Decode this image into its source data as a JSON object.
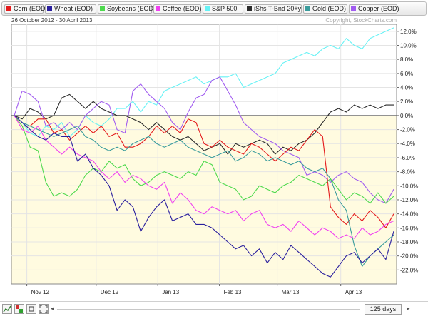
{
  "legend": [
    {
      "label": "Corn (EOD)",
      "color": "#e41a1c"
    },
    {
      "label": "Wheat (EOD)",
      "color": "#2a1f9e"
    },
    {
      "label": "Soybeans (EOD)",
      "color": "#4dd94d"
    },
    {
      "label": "Coffee (EOD)",
      "color": "#f040f0"
    },
    {
      "label": "S&P 500",
      "color": "#66f2f5"
    },
    {
      "label": "iShs T-Bnd 20+y",
      "color": "#2b2b2b"
    },
    {
      "label": "Gold (EOD)",
      "color": "#3a9c9c"
    },
    {
      "label": "Copper (EOD)",
      "color": "#a15cf0"
    }
  ],
  "header": {
    "date_range": "26 October 2012 - 30 April 2013",
    "watermark": "Copyright, StockCharts.com"
  },
  "toolbar": {
    "days": "125 days",
    "left_arrow": "◂",
    "right_arrow": "▸"
  },
  "chart_data": {
    "type": "line",
    "ylim": [
      -24,
      13
    ],
    "y_ticks": [
      "12.0%",
      "10.0%",
      "8.0%",
      "6.0%",
      "4.0%",
      "2.0%",
      "0.0%",
      "-2.0%",
      "-4.0%",
      "-6.0%",
      "-8.0%",
      "-10.0%",
      "-12.0%",
      "-14.0%",
      "-16.0%",
      "-18.0%",
      "-20.0%",
      "-22.0%"
    ],
    "x_ticks": [
      "Nov 12",
      "Dec 12",
      "Jan 13",
      "Feb 13",
      "Mar 13",
      "Apr 13"
    ],
    "background_split": 0,
    "series": [
      {
        "name": "S&P 500",
        "color": "#66f2f5",
        "values": [
          0.0,
          -1.0,
          -2.5,
          -3.0,
          -1.5,
          -2.0,
          -1.0,
          -3.0,
          -2.0,
          0.0,
          -1.0,
          -1.5,
          -0.5,
          1.0,
          1.0,
          2.0,
          0.5,
          2.0,
          1.5,
          3.5,
          4.0,
          4.5,
          5.0,
          5.5,
          4.5,
          5.0,
          5.5,
          5.5,
          6.0,
          4.0,
          4.5,
          5.0,
          5.5,
          6.0,
          7.5,
          8.0,
          8.5,
          9.0,
          8.5,
          9.5,
          10.0,
          9.5,
          11.0,
          10.0,
          9.5,
          11.0,
          11.5,
          12.0,
          12.5
        ]
      },
      {
        "name": "iShs T-Bnd 20+y",
        "color": "#2b2b2b",
        "values": [
          0.0,
          -0.5,
          1.0,
          0.5,
          -0.5,
          0.0,
          2.5,
          3.0,
          2.0,
          1.0,
          2.0,
          1.0,
          0.5,
          0.0,
          0.0,
          -0.5,
          -1.0,
          -2.0,
          -1.0,
          -2.0,
          -3.0,
          -3.5,
          -3.0,
          -4.0,
          -5.0,
          -4.5,
          -4.0,
          -5.5,
          -4.0,
          -4.5,
          -4.0,
          -3.5,
          -4.0,
          -5.5,
          -4.5,
          -5.0,
          -4.0,
          -3.5,
          -2.5,
          -1.0,
          0.5,
          1.0,
          0.5,
          1.5,
          1.0,
          1.5,
          1.0,
          1.5,
          1.5
        ]
      },
      {
        "name": "Copper (EOD)",
        "color": "#a15cf0",
        "values": [
          0.0,
          3.5,
          3.0,
          2.0,
          -1.5,
          -1.0,
          -2.0,
          -1.0,
          -2.0,
          0.0,
          1.0,
          2.0,
          1.5,
          -2.0,
          -2.5,
          3.5,
          4.5,
          3.0,
          2.0,
          1.0,
          -1.0,
          -2.0,
          0.5,
          2.5,
          3.0,
          5.0,
          5.5,
          3.5,
          1.5,
          -1.0,
          -2.0,
          -3.0,
          -3.5,
          -4.0,
          -5.0,
          -5.5,
          -6.0,
          -8.5,
          -8.0,
          -8.5,
          -9.5,
          -8.5,
          -8.0,
          -9.0,
          -9.5,
          -11.0,
          -12.0,
          -12.5,
          -10.5
        ]
      },
      {
        "name": "Corn (EOD)",
        "color": "#e41a1c",
        "values": [
          0.0,
          -1.5,
          -1.5,
          -0.5,
          -0.5,
          -2.5,
          -2.0,
          -3.5,
          -2.5,
          -1.5,
          -2.5,
          -1.5,
          -3.0,
          -2.5,
          -4.5,
          -4.5,
          -4.0,
          -3.0,
          -1.5,
          -2.5,
          -1.5,
          -2.5,
          -0.5,
          -1.0,
          -4.0,
          -4.5,
          -3.5,
          -4.5,
          -5.0,
          -5.5,
          -4.0,
          -4.5,
          -5.5,
          -6.5,
          -5.5,
          -4.5,
          -5.0,
          -3.5,
          -2.0,
          -3.0,
          -13.0,
          -14.5,
          -15.5,
          -14.0,
          -15.0,
          -13.5,
          -14.5,
          -16.0,
          -14.0
        ]
      },
      {
        "name": "Gold (EOD)",
        "color": "#3a9c9c",
        "values": [
          0.0,
          -1.0,
          -1.5,
          -2.0,
          -2.5,
          -3.0,
          -2.5,
          -2.0,
          -1.5,
          -3.0,
          -3.5,
          -4.5,
          -5.0,
          -4.5,
          -5.0,
          -4.0,
          -3.5,
          -3.0,
          -4.0,
          -4.5,
          -4.0,
          -3.5,
          -4.5,
          -5.0,
          -5.5,
          -6.0,
          -5.5,
          -5.0,
          -6.5,
          -6.0,
          -5.0,
          -5.5,
          -6.5,
          -6.0,
          -6.5,
          -7.0,
          -6.5,
          -7.5,
          -8.0,
          -7.5,
          -9.0,
          -12.0,
          -13.5,
          -18.5,
          -21.5,
          -20.0,
          -19.0,
          -18.0,
          -17.0
        ]
      },
      {
        "name": "Soybeans (EOD)",
        "color": "#4dd94d",
        "values": [
          0.0,
          -1.5,
          -4.5,
          -5.0,
          -9.5,
          -11.5,
          -11.0,
          -11.5,
          -10.5,
          -8.5,
          -7.5,
          -8.0,
          -6.5,
          -7.5,
          -7.0,
          -9.0,
          -10.0,
          -9.5,
          -8.5,
          -8.0,
          -8.5,
          -9.0,
          -8.0,
          -8.5,
          -6.5,
          -7.0,
          -9.5,
          -10.0,
          -10.5,
          -12.0,
          -11.5,
          -10.0,
          -10.5,
          -11.0,
          -10.0,
          -9.5,
          -8.5,
          -9.0,
          -9.5,
          -10.0,
          -9.0,
          -10.5,
          -12.0,
          -11.0,
          -11.5,
          -12.5,
          -11.0,
          -12.5,
          -11.5
        ]
      },
      {
        "name": "Coffee (EOD)",
        "color": "#f040f0",
        "values": [
          0.0,
          -2.0,
          -2.5,
          -1.5,
          -3.5,
          -4.5,
          -5.5,
          -4.5,
          -5.5,
          -6.0,
          -6.5,
          -8.0,
          -9.0,
          -8.0,
          -9.5,
          -8.5,
          -9.0,
          -10.0,
          -10.5,
          -9.5,
          -12.5,
          -11.0,
          -12.0,
          -13.5,
          -14.0,
          -13.0,
          -13.5,
          -14.0,
          -13.5,
          -15.0,
          -14.0,
          -13.5,
          -15.5,
          -16.0,
          -15.5,
          -16.5,
          -15.0,
          -16.0,
          -17.0,
          -16.0,
          -16.5,
          -17.5,
          -17.0,
          -17.5,
          -16.0,
          -17.0,
          -16.5,
          -15.5,
          -15.0
        ]
      },
      {
        "name": "Wheat (EOD)",
        "color": "#2a1f9e",
        "values": [
          0.0,
          -1.0,
          -2.0,
          -3.0,
          -3.5,
          -2.5,
          -3.0,
          -3.0,
          -6.5,
          -5.5,
          -7.5,
          -8.5,
          -10.0,
          -13.5,
          -12.0,
          -13.0,
          -16.5,
          -14.5,
          -13.0,
          -12.0,
          -15.0,
          -14.5,
          -14.0,
          -15.5,
          -15.5,
          -16.0,
          -17.0,
          -18.0,
          -19.0,
          -18.5,
          -20.0,
          -19.0,
          -21.0,
          -19.5,
          -20.5,
          -18.5,
          -19.5,
          -20.5,
          -21.5,
          -22.5,
          -23.0,
          -21.5,
          -20.0,
          -19.5,
          -21.0,
          -20.0,
          -19.0,
          -20.5,
          -16.5
        ]
      }
    ]
  }
}
